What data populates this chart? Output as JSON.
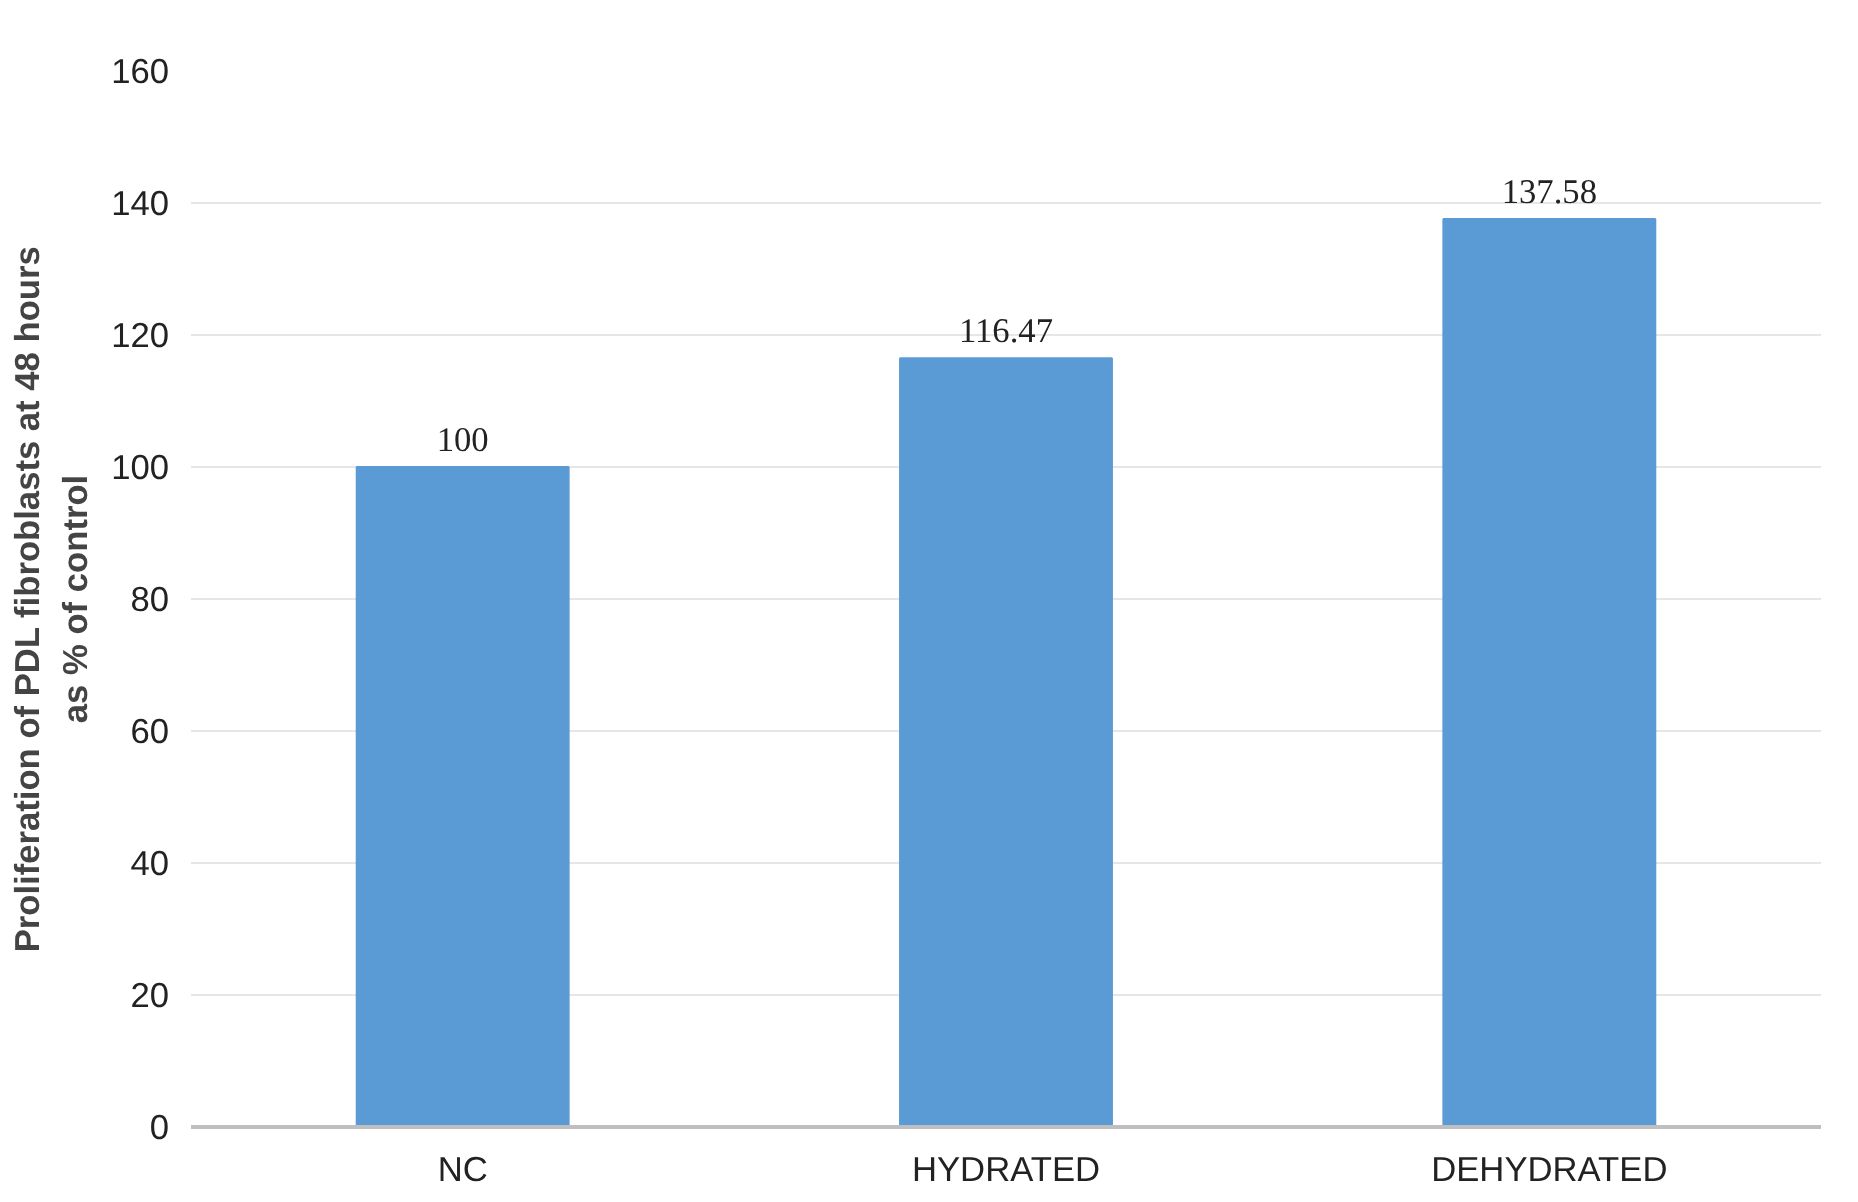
{
  "chart_data": {
    "type": "bar",
    "ylabel": "Proliferation of PDL fibroblasts at 48 hours\nas % of control",
    "categories": [
      "NC",
      "HYDRATED",
      "DEHYDRATED"
    ],
    "values": [
      100,
      116.47,
      137.58
    ],
    "color": "#5b9bd5",
    "ylim": [
      0,
      160
    ],
    "yticks": [
      0,
      20,
      40,
      60,
      80,
      100,
      120,
      140,
      160
    ],
    "grid": "y",
    "data_labels": true
  }
}
